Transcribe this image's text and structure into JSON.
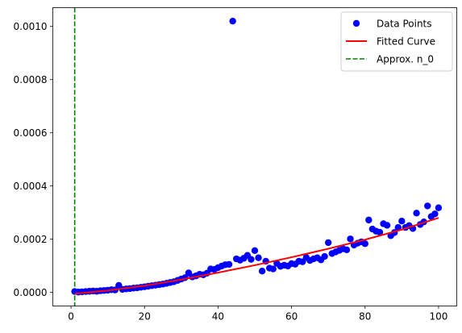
{
  "chart_data": {
    "type": "scatter",
    "title": "",
    "xlabel": "",
    "ylabel": "",
    "xlim": [
      -4.95,
      104.95
    ],
    "ylim": [
      -5.13e-05,
      0.0010705
    ],
    "xticks": [
      0,
      20,
      40,
      60,
      80,
      100
    ],
    "xtick_labels": [
      "0",
      "20",
      "40",
      "60",
      "80",
      "100"
    ],
    "yticks": [
      0,
      0.0002,
      0.0004,
      0.0006,
      0.0008,
      0.001
    ],
    "ytick_labels": [
      "0.0000",
      "0.0002",
      "0.0004",
      "0.0006",
      "0.0008",
      "0.0010"
    ],
    "grid": false,
    "legend_position": "top-right",
    "legend": [
      "Data Points",
      "Fitted Curve",
      "Approx. n_0"
    ],
    "series": [
      {
        "name": "Data Points",
        "kind": "scatter",
        "color": "#0000ff",
        "x": [
          1,
          2,
          3,
          4,
          5,
          6,
          7,
          8,
          9,
          10,
          11,
          12,
          13,
          14,
          15,
          16,
          17,
          18,
          19,
          20,
          21,
          22,
          23,
          24,
          25,
          26,
          27,
          28,
          29,
          30,
          31,
          32,
          33,
          34,
          35,
          36,
          37,
          38,
          39,
          40,
          41,
          42,
          43,
          44,
          45,
          46,
          47,
          48,
          49,
          50,
          51,
          52,
          53,
          54,
          55,
          56,
          57,
          58,
          59,
          60,
          61,
          62,
          63,
          64,
          65,
          66,
          67,
          68,
          69,
          70,
          71,
          72,
          73,
          74,
          75,
          76,
          77,
          78,
          79,
          80,
          81,
          82,
          83,
          84,
          85,
          86,
          87,
          88,
          89,
          90,
          91,
          92,
          93,
          94,
          95,
          96,
          97,
          98,
          99,
          100
        ],
        "y": [
          3e-06,
          1e-06,
          2e-06,
          3e-06,
          4e-06,
          5e-06,
          4e-06,
          6e-06,
          7e-06,
          8e-06,
          1e-05,
          9e-06,
          2.6e-05,
          1.1e-05,
          1.3e-05,
          1.4e-05,
          1.6e-05,
          1.7e-05,
          1.9e-05,
          2.1e-05,
          2.3e-05,
          2.5e-05,
          2.7e-05,
          2.9e-05,
          3.1e-05,
          3.4e-05,
          3.7e-05,
          4e-05,
          4.5e-05,
          5e-05,
          5.5e-05,
          7.3e-05,
          5.8e-05,
          6.2e-05,
          6.8e-05,
          6.6e-05,
          7.2e-05,
          8.8e-05,
          8.6e-05,
          9.3e-05,
          9.9e-05,
          0.000104,
          0.000105,
          0.00102,
          0.000126,
          0.000121,
          0.000128,
          0.000139,
          0.000124,
          0.000157,
          0.00013,
          8e-05,
          0.000117,
          9.1e-05,
          8.8e-05,
          0.000109,
          9.8e-05,
          0.000102,
          9.9e-05,
          0.000108,
          0.000106,
          0.000117,
          0.000115,
          0.000131,
          0.00012,
          0.000126,
          0.00013,
          0.000122,
          0.000135,
          0.000187,
          0.000146,
          0.000152,
          0.000158,
          0.000164,
          0.00016,
          0.000201,
          0.000178,
          0.000185,
          0.00019,
          0.000183,
          0.000272,
          0.000238,
          0.00023,
          0.000226,
          0.000258,
          0.000252,
          0.000213,
          0.000225,
          0.000244,
          0.000268,
          0.000244,
          0.000251,
          0.00024,
          0.000298,
          0.000255,
          0.000265,
          0.000325,
          0.000285,
          0.000295,
          0.000318
        ]
      },
      {
        "name": "Fitted Curve",
        "kind": "line",
        "color": "#ff0000",
        "x": [
          1,
          10,
          20,
          30,
          40,
          50,
          60,
          70,
          80,
          90,
          100
        ],
        "y": [
          -5e-06,
          7e-06,
          2.5e-05,
          4.8e-05,
          7.4e-05,
          0.000102,
          0.000132,
          0.000164,
          0.000198,
          0.000236,
          0.00028
        ]
      },
      {
        "name": "Approx. n_0",
        "kind": "vline",
        "color": "#008000",
        "x": 1
      }
    ]
  }
}
